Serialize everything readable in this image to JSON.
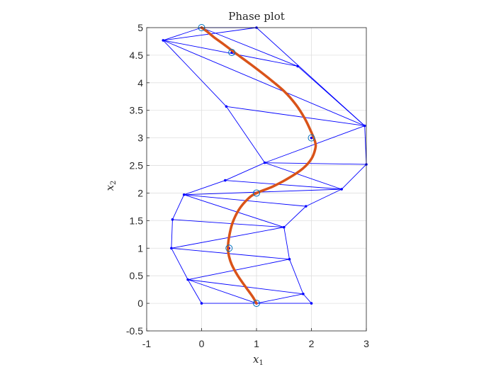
{
  "chart_data": {
    "type": "line",
    "title": "Phase plot",
    "xlabel": {
      "base": "x",
      "sub": "1"
    },
    "ylabel": {
      "base": "x",
      "sub": "2"
    },
    "xlim": [
      -1,
      3
    ],
    "ylim": [
      -0.5,
      5
    ],
    "xticks": [
      "-1",
      "0",
      "1",
      "2",
      "3"
    ],
    "yticks": [
      "-0.5",
      "0",
      "0.5",
      "1",
      "1.5",
      "2",
      "2.5",
      "3",
      "3.5",
      "4",
      "4.5",
      "5"
    ],
    "xtick_values": [
      -1,
      0,
      1,
      2,
      3
    ],
    "ytick_values": [
      -0.5,
      0,
      0.5,
      1,
      1.5,
      2,
      2.5,
      3,
      3.5,
      4,
      4.5,
      5
    ],
    "grid": true,
    "colors": {
      "mesh": "#0000ff",
      "trajectory": "#d95319",
      "markers": "#0072bd",
      "axes": "#262626",
      "grid": "#dfdfdf"
    },
    "series": [
      {
        "kind": "mesh",
        "nodes": [
          [
            1.0,
            0.0
          ],
          [
            2.0,
            0.0
          ],
          [
            0.0,
            0.0
          ],
          [
            1.85,
            0.17
          ],
          [
            -0.25,
            0.43
          ],
          [
            1.6,
            0.8
          ],
          [
            -0.55,
            1.0
          ],
          [
            1.5,
            1.38
          ],
          [
            -0.53,
            1.52
          ],
          [
            1.9,
            1.76
          ],
          [
            -0.32,
            1.97
          ],
          [
            2.55,
            2.07
          ],
          [
            0.43,
            2.23
          ],
          [
            3.0,
            2.52
          ],
          [
            1.15,
            2.55
          ],
          [
            2.97,
            3.22
          ],
          [
            0.45,
            3.57
          ],
          [
            1.75,
            4.3
          ],
          [
            -0.7,
            4.77
          ],
          [
            0.0,
            5.0
          ],
          [
            1.0,
            5.0
          ],
          [
            0.55,
            4.55
          ],
          [
            2.0,
            3.0
          ],
          [
            0.5,
            1.0
          ],
          [
            1.0,
            2.0
          ]
        ],
        "edges": [
          [
            0,
            1
          ],
          [
            0,
            2
          ],
          [
            0,
            3
          ],
          [
            1,
            3
          ],
          [
            2,
            4
          ],
          [
            0,
            4
          ],
          [
            3,
            4
          ],
          [
            4,
            5
          ],
          [
            4,
            6
          ],
          [
            3,
            5
          ],
          [
            5,
            6
          ],
          [
            6,
            7
          ],
          [
            6,
            8
          ],
          [
            5,
            7
          ],
          [
            7,
            8
          ],
          [
            7,
            10
          ],
          [
            8,
            10
          ],
          [
            7,
            9
          ],
          [
            9,
            10
          ],
          [
            10,
            11
          ],
          [
            10,
            12
          ],
          [
            9,
            11
          ],
          [
            11,
            12
          ],
          [
            11,
            14
          ],
          [
            12,
            14
          ],
          [
            11,
            13
          ],
          [
            13,
            14
          ],
          [
            13,
            15
          ],
          [
            14,
            15
          ],
          [
            14,
            16
          ],
          [
            15,
            16
          ],
          [
            16,
            18
          ],
          [
            15,
            18
          ],
          [
            15,
            17
          ],
          [
            17,
            18
          ],
          [
            17,
            19
          ],
          [
            18,
            19
          ],
          [
            18,
            20
          ],
          [
            19,
            20
          ],
          [
            20,
            15
          ]
        ]
      },
      {
        "kind": "trajectory",
        "x": [
          1.0,
          0.93,
          0.8,
          0.66,
          0.55,
          0.5,
          0.48,
          0.5,
          0.56,
          0.68,
          0.85,
          1.0,
          1.3,
          1.6,
          1.85,
          2.0,
          2.07,
          2.07,
          2.0,
          1.88,
          1.72,
          1.5,
          1.2,
          0.9,
          0.6,
          0.4,
          0.22,
          0.1,
          0.0
        ],
        "y": [
          0.0,
          0.12,
          0.3,
          0.5,
          0.7,
          0.85,
          1.0,
          1.2,
          1.45,
          1.7,
          1.9,
          2.0,
          2.12,
          2.28,
          2.45,
          2.62,
          2.8,
          2.92,
          3.1,
          3.35,
          3.6,
          3.85,
          4.1,
          4.33,
          4.55,
          4.7,
          4.83,
          4.93,
          5.0
        ]
      },
      {
        "kind": "markers",
        "x": [
          1.0,
          0.5,
          1.0,
          2.0,
          0.55,
          0.0
        ],
        "y": [
          0.0,
          1.0,
          2.0,
          3.0,
          4.55,
          5.0
        ]
      }
    ]
  }
}
